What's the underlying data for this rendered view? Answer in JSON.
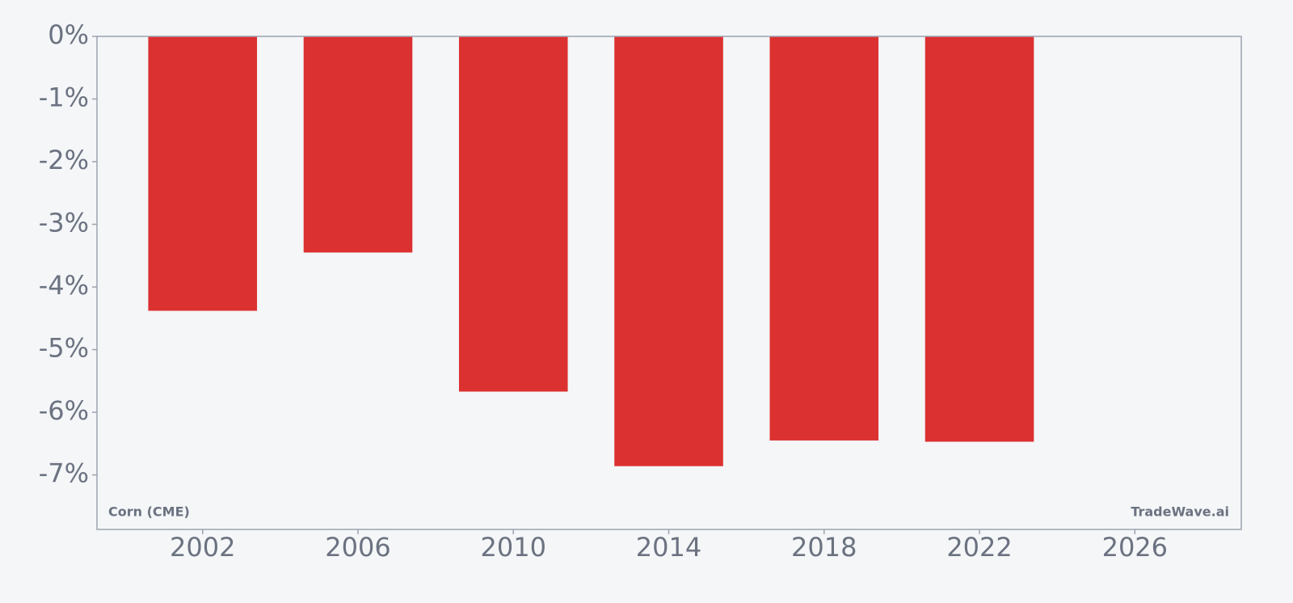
{
  "chart_data": {
    "type": "bar",
    "x": [
      2002,
      2006,
      2010,
      2014,
      2018,
      2022
    ],
    "values": [
      -4.38,
      -3.45,
      -5.67,
      -6.86,
      -6.45,
      -6.47
    ],
    "color": "#dc3131",
    "xlim": [
      1999.28,
      2028.74
    ],
    "xticks": [
      2002,
      2006,
      2010,
      2014,
      2018,
      2022,
      2026
    ],
    "ylim": [
      -7.87,
      0
    ],
    "yticks": [
      {
        "value": 0,
        "label": "0%"
      },
      {
        "value": -1,
        "label": "-1%"
      },
      {
        "value": -2,
        "label": "-2%"
      },
      {
        "value": -3,
        "label": "-3%"
      },
      {
        "value": -4,
        "label": "-4%"
      },
      {
        "value": -5,
        "label": "-5%"
      },
      {
        "value": -6,
        "label": "-6%"
      },
      {
        "value": -7,
        "label": "-7%"
      }
    ],
    "annotations": [
      "Corn (CME)",
      "TradeWave.ai"
    ]
  }
}
